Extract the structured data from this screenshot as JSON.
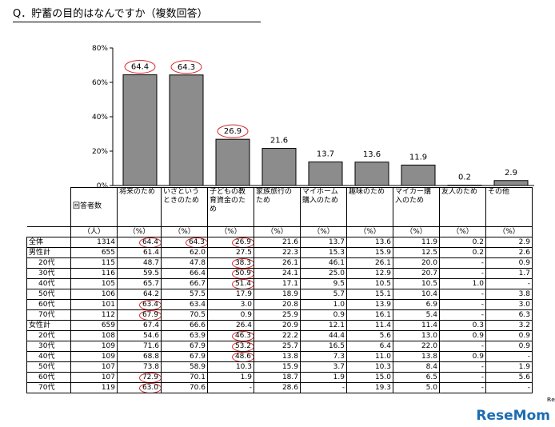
{
  "title": "Q．貯蓄の目的はなんですか（複数回答）",
  "logo": "ReseMom",
  "chart_data": {
    "type": "bar",
    "categories": [
      "将来のため",
      "いざというときのため",
      "子どもの教育資金のため",
      "家族旅行のため",
      "マイホーム購入のため",
      "趣味のため",
      "マイカー購入のため",
      "友人のため",
      "その他"
    ],
    "values": [
      64.4,
      64.3,
      26.9,
      21.6,
      13.7,
      13.6,
      11.9,
      0.2,
      2.9
    ],
    "highlighted": [
      0,
      1,
      2
    ],
    "ylim": [
      0,
      80
    ],
    "yticks": [
      "0%",
      "20%",
      "40%",
      "60%",
      "80%"
    ],
    "bar_color": "#8c8c8c",
    "highlight_color": "#d8282a"
  },
  "table": {
    "count_header": "回答者数",
    "count_unit": "（人）",
    "pct_unit": "（%）",
    "columns": [
      "将来のため",
      "いざというときのため",
      "子どもの教育資金のため",
      "家族旅行のため",
      "マイホーム購入のため",
      "趣味のため",
      "マイカー購入のため",
      "友人のため",
      "その他"
    ],
    "rows": [
      {
        "label": "全体",
        "sub": false,
        "n": "1314",
        "v": [
          "64.4",
          "64.3",
          "26.9",
          "21.6",
          "13.7",
          "13.6",
          "11.9",
          "0.2",
          "2.9"
        ],
        "hl": [
          0,
          1,
          2
        ]
      },
      {
        "label": "男性計",
        "sub": false,
        "n": "655",
        "v": [
          "61.4",
          "62.0",
          "27.5",
          "22.3",
          "15.3",
          "15.9",
          "12.5",
          "0.2",
          "2.6"
        ],
        "hl": []
      },
      {
        "label": "20代",
        "sub": true,
        "n": "115",
        "v": [
          "48.7",
          "47.8",
          "38.3",
          "26.1",
          "46.1",
          "26.1",
          "20.0",
          "-",
          "0.9"
        ],
        "hl": [
          2
        ]
      },
      {
        "label": "30代",
        "sub": true,
        "n": "116",
        "v": [
          "59.5",
          "66.4",
          "50.9",
          "24.1",
          "25.0",
          "12.9",
          "20.7",
          "-",
          "1.7"
        ],
        "hl": [
          2
        ]
      },
      {
        "label": "40代",
        "sub": true,
        "n": "105",
        "v": [
          "65.7",
          "66.7",
          "51.4",
          "17.1",
          "9.5",
          "10.5",
          "10.5",
          "1.0",
          "-"
        ],
        "hl": [
          2
        ]
      },
      {
        "label": "50代",
        "sub": true,
        "n": "106",
        "v": [
          "64.2",
          "57.5",
          "17.9",
          "18.9",
          "5.7",
          "15.1",
          "10.4",
          "-",
          "3.8"
        ],
        "hl": []
      },
      {
        "label": "60代",
        "sub": true,
        "n": "101",
        "v": [
          "63.4",
          "63.4",
          "3.0",
          "20.8",
          "1.0",
          "13.9",
          "6.9",
          "-",
          "3.0"
        ],
        "hl": [
          0
        ]
      },
      {
        "label": "70代",
        "sub": true,
        "n": "112",
        "v": [
          "67.9",
          "70.5",
          "0.9",
          "25.9",
          "0.9",
          "16.1",
          "5.4",
          "-",
          "6.3"
        ],
        "hl": [
          0
        ]
      },
      {
        "label": "女性計",
        "sub": false,
        "n": "659",
        "v": [
          "67.4",
          "66.6",
          "26.4",
          "20.9",
          "12.1",
          "11.4",
          "11.4",
          "0.3",
          "3.2"
        ],
        "hl": []
      },
      {
        "label": "20代",
        "sub": true,
        "n": "108",
        "v": [
          "54.6",
          "63.9",
          "46.3",
          "22.2",
          "44.4",
          "5.6",
          "13.0",
          "0.9",
          "0.9"
        ],
        "hl": [
          2
        ]
      },
      {
        "label": "30代",
        "sub": true,
        "n": "109",
        "v": [
          "71.6",
          "67.9",
          "53.2",
          "25.7",
          "16.5",
          "6.4",
          "22.0",
          "-",
          "0.9"
        ],
        "hl": [
          2
        ]
      },
      {
        "label": "40代",
        "sub": true,
        "n": "109",
        "v": [
          "68.8",
          "67.9",
          "48.6",
          "13.8",
          "7.3",
          "11.0",
          "13.8",
          "0.9",
          "-"
        ],
        "hl": [
          2
        ]
      },
      {
        "label": "50代",
        "sub": true,
        "n": "107",
        "v": [
          "73.8",
          "58.9",
          "10.3",
          "15.9",
          "3.7",
          "10.3",
          "8.4",
          "-",
          "1.9"
        ],
        "hl": []
      },
      {
        "label": "60代",
        "sub": true,
        "n": "107",
        "v": [
          "72.9",
          "70.1",
          "1.9",
          "18.7",
          "1.9",
          "15.0",
          "6.5",
          "-",
          "5.6"
        ],
        "hl": [
          0
        ]
      },
      {
        "label": "70代",
        "sub": true,
        "n": "119",
        "v": [
          "63.0",
          "70.6",
          "-",
          "28.6",
          "-",
          "19.3",
          "5.0",
          "-",
          "-"
        ],
        "hl": [
          0
        ]
      }
    ]
  }
}
